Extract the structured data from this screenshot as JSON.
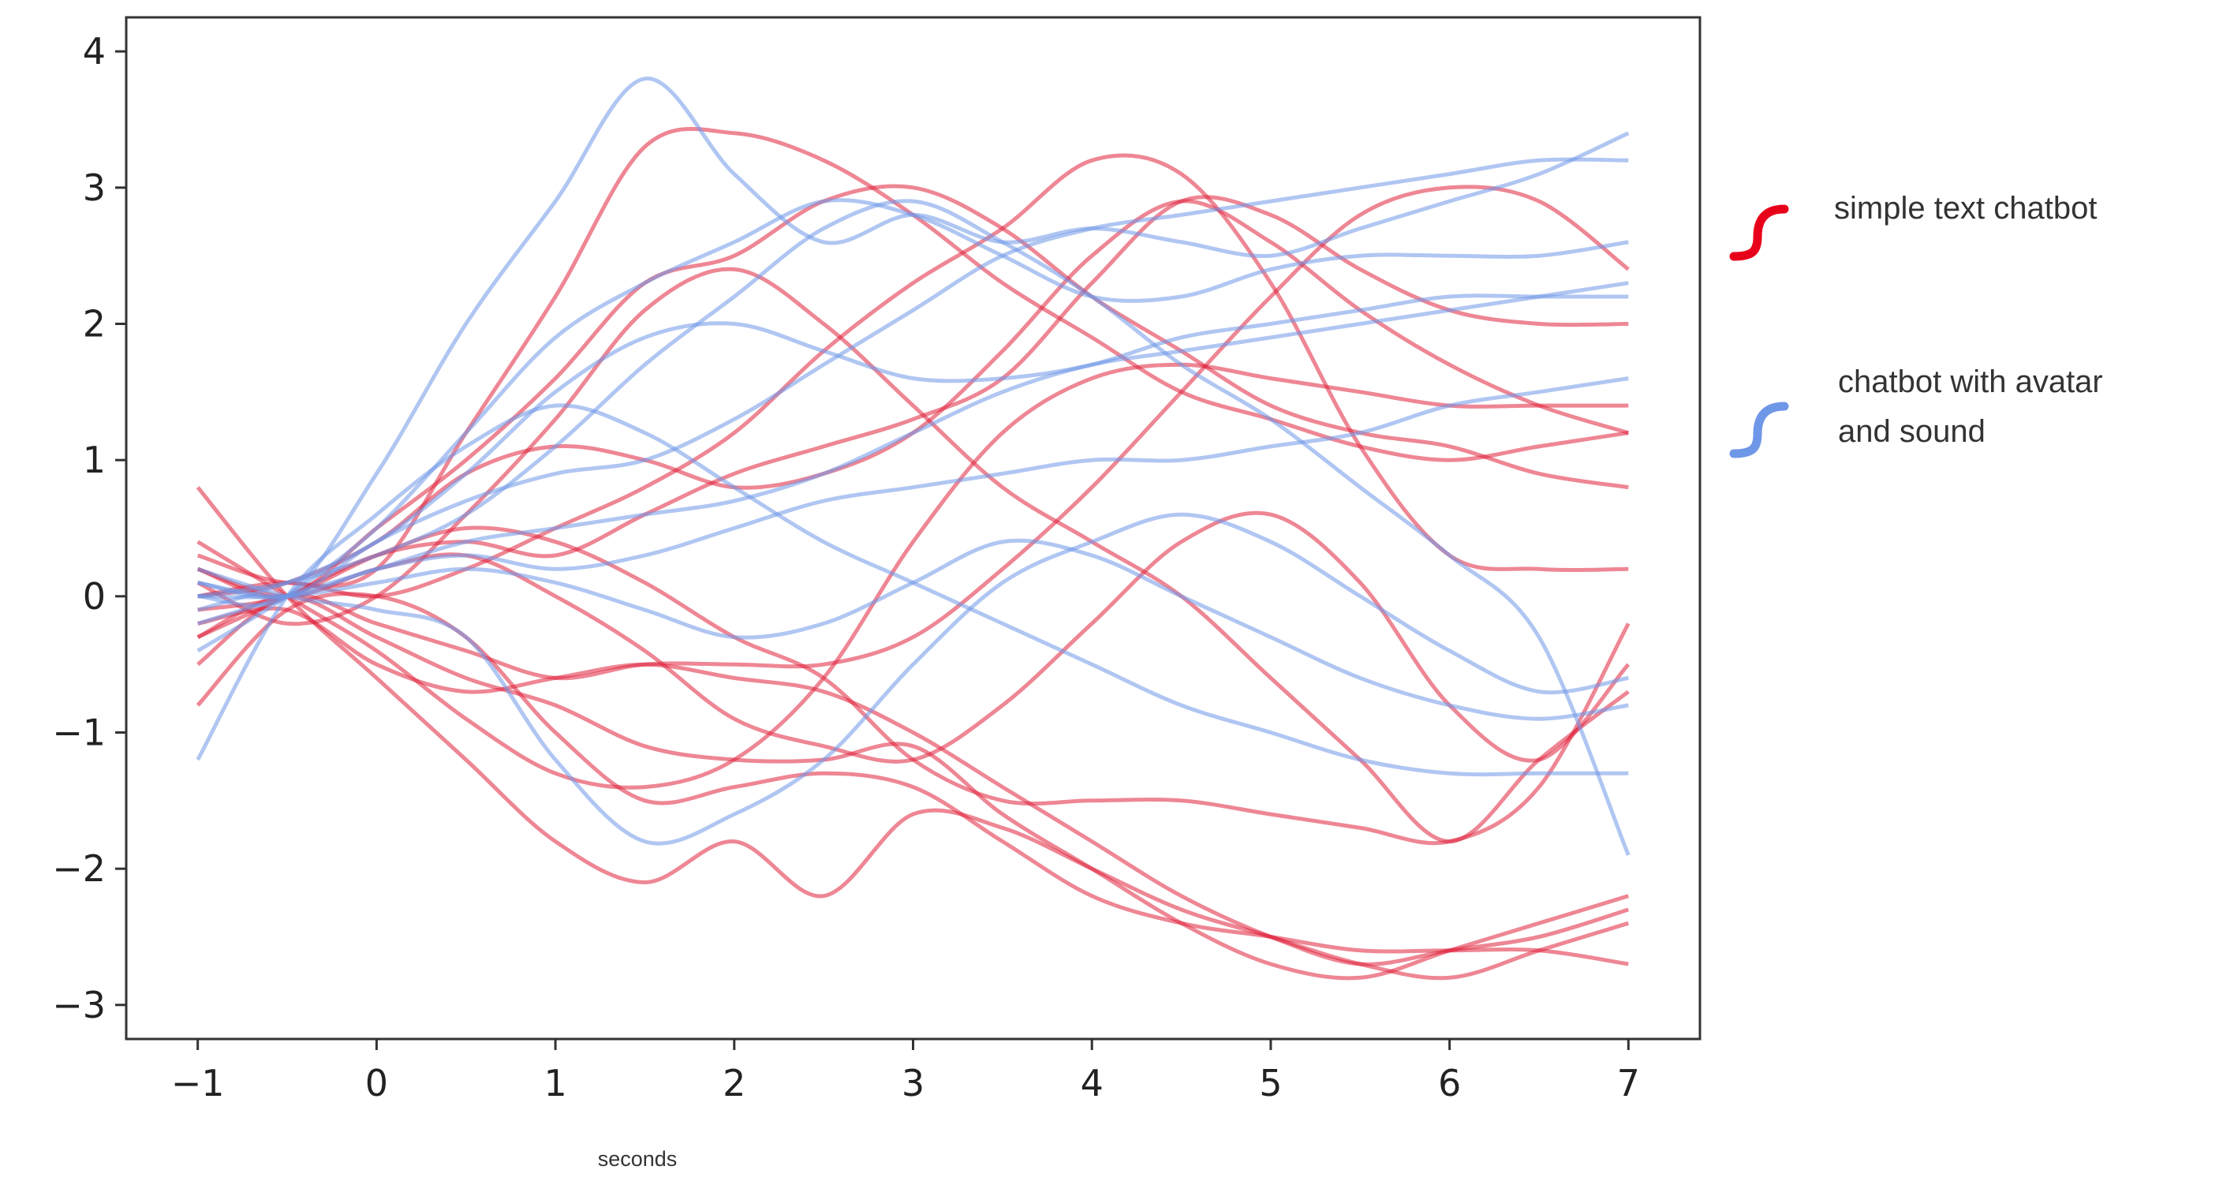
{
  "chart_data": {
    "type": "line",
    "xlabel": "seconds",
    "ylabel": "",
    "xlim": [
      -1.4,
      7.4
    ],
    "ylim": [
      -3.25,
      4.25
    ],
    "xticks": [
      -1,
      0,
      1,
      2,
      3,
      4,
      5,
      6,
      7
    ],
    "yticks": [
      -3,
      -2,
      -1,
      0,
      1,
      2,
      3,
      4
    ],
    "xtick_labels": [
      "−1",
      "0",
      "1",
      "2",
      "3",
      "4",
      "5",
      "6",
      "7"
    ],
    "ytick_labels": [
      "−3",
      "−2",
      "−1",
      "0",
      "1",
      "2",
      "3",
      "4"
    ],
    "grid": false,
    "legend_position": "right, outside plot",
    "x": [
      -1,
      -0.5,
      0,
      0.5,
      1,
      1.5,
      2,
      2.5,
      3,
      3.5,
      4,
      4.5,
      5,
      5.5,
      6,
      6.5,
      7
    ],
    "groups": [
      {
        "name": "simple text chatbot",
        "color": "#e0223c",
        "series": [
          {
            "values": [
              0.3,
              0.1,
              0.2,
              1.2,
              2.2,
              3.3,
              3.4,
              3.2,
              2.8,
              2.3,
              1.9,
              1.5,
              1.3,
              1.1,
              1.0,
              1.1,
              1.2
            ]
          },
          {
            "values": [
              -0.2,
              -0.1,
              -0.5,
              -0.7,
              -0.6,
              -0.5,
              -0.6,
              -0.7,
              -1.0,
              -1.4,
              -1.8,
              -2.2,
              -2.5,
              -2.7,
              -2.6,
              -2.5,
              -2.3
            ]
          },
          {
            "values": [
              0.8,
              0.0,
              -0.6,
              -1.2,
              -1.8,
              -2.1,
              -1.8,
              -2.2,
              -1.6,
              -1.7,
              -2.0,
              -2.3,
              -2.5,
              -2.7,
              -2.8,
              -2.6,
              -2.4
            ]
          },
          {
            "values": [
              0.0,
              0.1,
              0.4,
              0.9,
              1.1,
              1.0,
              0.8,
              0.9,
              1.2,
              1.8,
              2.5,
              2.9,
              2.6,
              2.1,
              1.7,
              1.4,
              1.2
            ]
          },
          {
            "values": [
              -0.3,
              0.0,
              -0.3,
              -0.6,
              -0.8,
              -1.1,
              -1.2,
              -1.2,
              -1.1,
              -1.6,
              -2.0,
              -2.4,
              -2.7,
              -2.8,
              -2.6,
              -2.4,
              -2.2
            ]
          },
          {
            "values": [
              0.2,
              0.0,
              0.5,
              1.0,
              1.6,
              2.3,
              2.5,
              2.9,
              3.0,
              2.7,
              2.2,
              1.8,
              1.4,
              1.2,
              1.1,
              0.9,
              0.8
            ]
          },
          {
            "values": [
              -0.5,
              0.0,
              -0.2,
              -0.4,
              -0.6,
              -0.5,
              -0.5,
              -0.5,
              -0.3,
              0.2,
              0.8,
              1.5,
              2.2,
              2.8,
              3.0,
              2.9,
              2.4
            ]
          },
          {
            "values": [
              0.1,
              -0.2,
              0.0,
              0.6,
              1.3,
              2.1,
              2.4,
              2.0,
              1.4,
              0.8,
              0.4,
              0.0,
              -0.6,
              -1.2,
              -1.8,
              -1.2,
              -0.7
            ]
          },
          {
            "values": [
              -0.1,
              0.0,
              0.3,
              0.5,
              0.4,
              0.1,
              -0.3,
              -0.6,
              -1.2,
              -1.5,
              -1.5,
              -1.5,
              -1.6,
              -1.7,
              -1.8,
              -1.4,
              -0.2
            ]
          },
          {
            "values": [
              0.4,
              0.0,
              -0.4,
              -0.9,
              -1.3,
              -1.4,
              -1.2,
              -0.6,
              0.4,
              1.2,
              1.6,
              1.7,
              1.6,
              1.5,
              1.4,
              1.4,
              1.4
            ]
          },
          {
            "values": [
              -0.3,
              0.0,
              0.3,
              0.4,
              0.3,
              0.6,
              0.9,
              1.1,
              1.3,
              1.6,
              2.3,
              2.9,
              2.8,
              2.4,
              2.1,
              2.0,
              2.0
            ]
          },
          {
            "values": [
              0.0,
              0.1,
              0.0,
              0.2,
              0.5,
              0.8,
              1.2,
              1.8,
              2.3,
              2.7,
              3.2,
              3.1,
              2.3,
              1.1,
              0.3,
              0.2,
              0.2
            ]
          },
          {
            "values": [
              -0.8,
              -0.1,
              0.0,
              -0.3,
              -1.0,
              -1.5,
              -1.4,
              -1.3,
              -1.4,
              -1.8,
              -2.2,
              -2.4,
              -2.5,
              -2.6,
              -2.6,
              -2.6,
              -2.7
            ]
          },
          {
            "values": [
              0.2,
              0.0,
              0.2,
              0.3,
              0.0,
              -0.4,
              -0.9,
              -1.1,
              -1.2,
              -0.8,
              -0.2,
              0.4,
              0.6,
              0.1,
              -0.8,
              -1.2,
              -0.5
            ]
          }
        ]
      },
      {
        "name": "chatbot with avatar and sound",
        "color": "#6f97e8",
        "series": [
          {
            "values": [
              0.0,
              0.0,
              0.9,
              2.0,
              2.9,
              3.8,
              3.1,
              2.6,
              2.8,
              2.6,
              2.7,
              2.6,
              2.5,
              2.7,
              2.9,
              3.1,
              3.4
            ]
          },
          {
            "values": [
              -1.2,
              0.0,
              0.6,
              1.1,
              1.4,
              1.2,
              0.8,
              0.4,
              0.1,
              -0.2,
              -0.5,
              -0.8,
              -1.0,
              -1.2,
              -1.3,
              -1.3,
              -1.3
            ]
          },
          {
            "values": [
              0.1,
              0.0,
              0.4,
              0.7,
              0.9,
              1.0,
              1.3,
              1.7,
              2.1,
              2.5,
              2.7,
              2.8,
              2.9,
              3.0,
              3.1,
              3.2,
              3.2
            ]
          },
          {
            "values": [
              0.0,
              0.1,
              0.3,
              0.6,
              1.1,
              1.7,
              2.2,
              2.7,
              2.9,
              2.6,
              2.2,
              1.7,
              1.3,
              0.8,
              0.3,
              -0.3,
              -1.9
            ]
          },
          {
            "values": [
              -0.2,
              0.0,
              0.2,
              0.4,
              0.5,
              0.6,
              0.7,
              0.9,
              1.2,
              1.5,
              1.7,
              1.8,
              1.9,
              2.0,
              2.1,
              2.2,
              2.3
            ]
          },
          {
            "values": [
              0.2,
              0.0,
              -0.1,
              -0.3,
              -1.2,
              -1.8,
              -1.6,
              -1.2,
              -0.5,
              0.1,
              0.4,
              0.6,
              0.4,
              0.0,
              -0.4,
              -0.7,
              -0.6
            ]
          },
          {
            "values": [
              -0.4,
              0.0,
              0.5,
              1.2,
              1.9,
              2.3,
              2.6,
              2.9,
              2.8,
              2.5,
              2.2,
              2.2,
              2.4,
              2.5,
              2.5,
              2.5,
              2.6
            ]
          },
          {
            "values": [
              0.1,
              0.0,
              0.2,
              0.3,
              0.2,
              0.3,
              0.5,
              0.7,
              0.8,
              0.9,
              1.0,
              1.0,
              1.1,
              1.2,
              1.4,
              1.5,
              1.6
            ]
          },
          {
            "values": [
              0.0,
              0.0,
              0.1,
              0.2,
              0.1,
              -0.1,
              -0.3,
              -0.2,
              0.1,
              0.4,
              0.3,
              0.0,
              -0.3,
              -0.6,
              -0.8,
              -0.9,
              -0.8
            ]
          },
          {
            "values": [
              -0.1,
              0.1,
              0.4,
              0.9,
              1.5,
              1.9,
              2.0,
              1.8,
              1.6,
              1.6,
              1.7,
              1.9,
              2.0,
              2.1,
              2.2,
              2.2,
              2.2
            ]
          }
        ]
      }
    ]
  },
  "legend": {
    "items": [
      {
        "label_lines": [
          "simple text chatbot"
        ],
        "color": "#e8001a"
      },
      {
        "label_lines": [
          "chatbot with avatar",
          "and sound"
        ],
        "color": "#6f97e8"
      }
    ]
  }
}
